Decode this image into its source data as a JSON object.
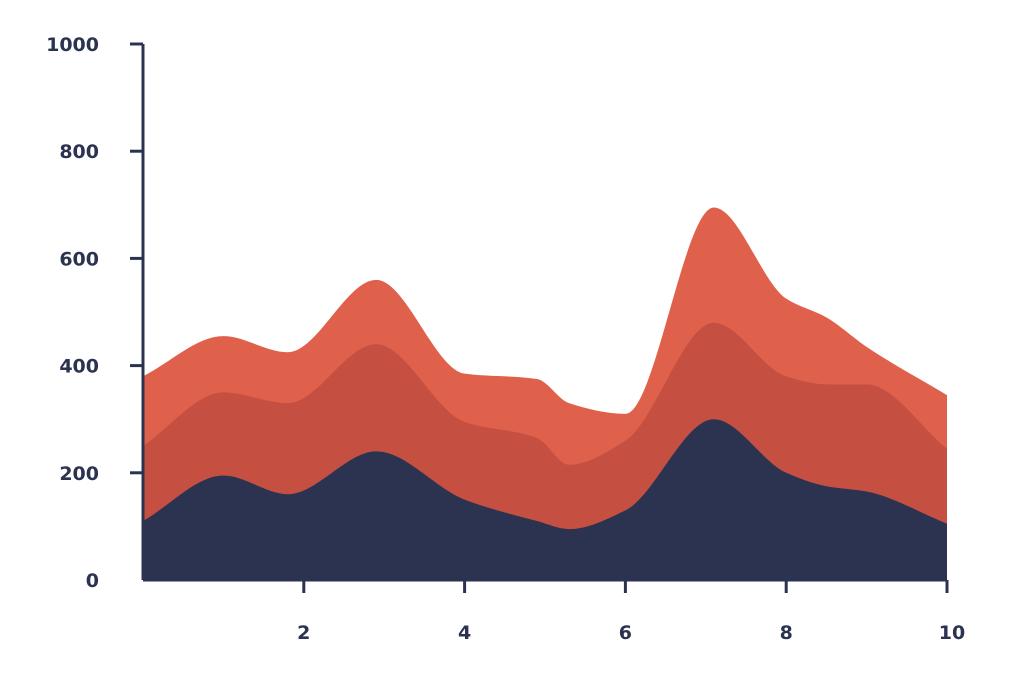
{
  "chart_data": {
    "type": "area",
    "stacked": true,
    "smooth": true,
    "title": "",
    "xlabel": "",
    "ylabel": "",
    "xlim": [
      0,
      10
    ],
    "ylim": [
      0,
      1000
    ],
    "x_ticks": [
      2,
      4,
      6,
      8,
      10
    ],
    "y_ticks": [
      0,
      200,
      400,
      600,
      800,
      1000
    ],
    "grid": false,
    "legend": "none",
    "x": [
      0,
      1,
      1.8,
      2.9,
      4,
      4.9,
      5.3,
      6,
      7.1,
      8,
      8.5,
      9,
      10
    ],
    "series": [
      {
        "color": "#2b3350",
        "values": [
          110,
          195,
          160,
          240,
          150,
          110,
          95,
          130,
          300,
          200,
          175,
          165,
          105
        ]
      },
      {
        "color": "#c55042",
        "values": [
          140,
          155,
          170,
          200,
          145,
          155,
          120,
          130,
          180,
          180,
          190,
          200,
          140
        ]
      },
      {
        "color": "#e0614b",
        "values": [
          130,
          105,
          95,
          120,
          90,
          110,
          115,
          50,
          215,
          145,
          125,
          70,
          100
        ]
      }
    ]
  }
}
